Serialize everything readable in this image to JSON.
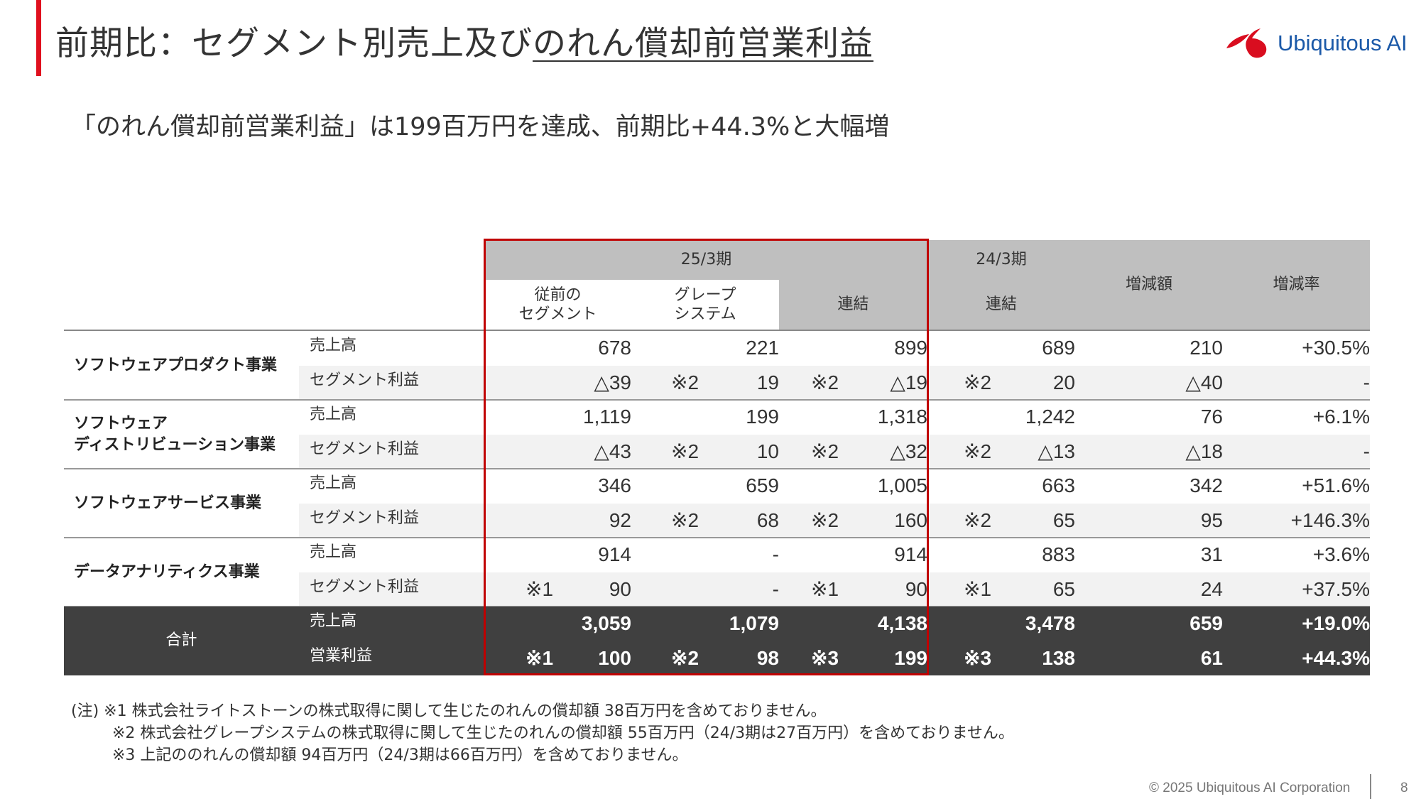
{
  "header": {
    "title_plain": "前期比：セグメント別売上及び",
    "title_underlined": "のれん償却前営業利益",
    "logo_text": "Ubiquitous AI"
  },
  "subtitle": "「のれん償却前営業利益」は199百万円を達成、前期比+44.3%と大幅増",
  "table": {
    "headers": {
      "period_current": "25/3期",
      "col_prev_segment": "従前の\nセグメント",
      "col_grape": "グレープ\nシステム",
      "col_consolidated": "連結",
      "period_prev": "24/3期",
      "col_prev_consolidated": "連結",
      "col_change": "増減額",
      "col_rate": "増減率"
    },
    "segments": [
      {
        "name": "ソフトウェアプロダクト事業",
        "rows": [
          {
            "item": "売上高",
            "cells": [
              [
                "",
                "678"
              ],
              [
                "",
                "221"
              ],
              [
                "",
                "899"
              ],
              [
                "",
                "689"
              ]
            ],
            "change": "210",
            "rate": "+30.5%"
          },
          {
            "item": "セグメント利益",
            "cells": [
              [
                "",
                "△39"
              ],
              [
                "※2",
                "19"
              ],
              [
                "※2",
                "△19"
              ],
              [
                "※2",
                "20"
              ]
            ],
            "change": "△40",
            "rate": "-"
          }
        ]
      },
      {
        "name": "ソフトウェア\nディストリビューション事業",
        "rows": [
          {
            "item": "売上高",
            "cells": [
              [
                "",
                "1,119"
              ],
              [
                "",
                "199"
              ],
              [
                "",
                "1,318"
              ],
              [
                "",
                "1,242"
              ]
            ],
            "change": "76",
            "rate": "+6.1%"
          },
          {
            "item": "セグメント利益",
            "cells": [
              [
                "",
                "△43"
              ],
              [
                "※2",
                "10"
              ],
              [
                "※2",
                "△32"
              ],
              [
                "※2",
                "△13"
              ]
            ],
            "change": "△18",
            "rate": "-"
          }
        ]
      },
      {
        "name": "ソフトウェアサービス事業",
        "rows": [
          {
            "item": "売上高",
            "cells": [
              [
                "",
                "346"
              ],
              [
                "",
                "659"
              ],
              [
                "",
                "1,005"
              ],
              [
                "",
                "663"
              ]
            ],
            "change": "342",
            "rate": "+51.6%"
          },
          {
            "item": "セグメント利益",
            "cells": [
              [
                "",
                "92"
              ],
              [
                "※2",
                "68"
              ],
              [
                "※2",
                "160"
              ],
              [
                "※2",
                "65"
              ]
            ],
            "change": "95",
            "rate": "+146.3%"
          }
        ]
      },
      {
        "name": "データアナリティクス事業",
        "rows": [
          {
            "item": "売上高",
            "cells": [
              [
                "",
                "914"
              ],
              [
                "",
                "-"
              ],
              [
                "",
                "914"
              ],
              [
                "",
                "883"
              ]
            ],
            "change": "31",
            "rate": "+3.6%"
          },
          {
            "item": "セグメント利益",
            "cells": [
              [
                "※1",
                "90"
              ],
              [
                "",
                "-"
              ],
              [
                "※1",
                "90"
              ],
              [
                "※1",
                "65"
              ]
            ],
            "change": "24",
            "rate": "+37.5%"
          }
        ]
      }
    ],
    "total": {
      "name": "合計",
      "rows": [
        {
          "item": "売上高",
          "cells": [
            [
              "",
              "3,059"
            ],
            [
              "",
              "1,079"
            ],
            [
              "",
              "4,138"
            ],
            [
              "",
              "3,478"
            ]
          ],
          "change": "659",
          "rate": "+19.0%"
        },
        {
          "item": "営業利益",
          "cells": [
            [
              "※1",
              "100"
            ],
            [
              "※2",
              "98"
            ],
            [
              "※3",
              "199"
            ],
            [
              "※3",
              "138"
            ]
          ],
          "change": "61",
          "rate": "+44.3%"
        }
      ]
    }
  },
  "footnotes": [
    "(注) ※1  株式会社ライトストーンの株式取得に関して生じたのれんの償却額 38百万円を含めておりません。",
    "※2  株式会社グレープシステムの株式取得に関して生じたのれんの償却額 55百万円（24/3期は27百万円）を含めておりません。",
    "※3  上記ののれんの償却額 94百万円（24/3期は66百万円）を含めておりません。"
  ],
  "footer": {
    "copyright": "© 2025 Ubiquitous AI Corporation",
    "page": "8"
  },
  "colors": {
    "accent": "#e0101e",
    "logo_blue": "#1b59a8",
    "header_gray": "#bfbfbf",
    "total_bg": "#404040",
    "highlight": "#c00000"
  }
}
